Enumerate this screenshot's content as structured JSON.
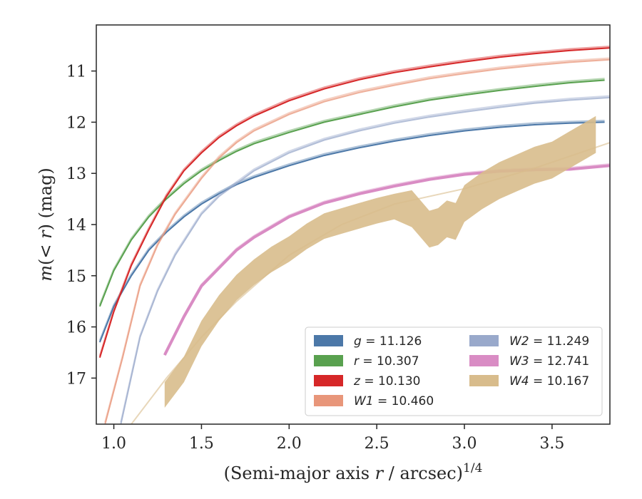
{
  "chart_data": {
    "type": "line",
    "xlabel": "(Semi-major axis r / arcsec)^{1/4}",
    "ylabel": "m(< r) (mag)",
    "xlim": [
      0.9,
      3.83
    ],
    "ylim": [
      17.9,
      10.1
    ],
    "y_inverted": true,
    "grid": false,
    "legend_position": "lower-right",
    "legend_columns": 2,
    "x_ticks": [
      "1.0",
      "1.5",
      "2.0",
      "2.5",
      "3.0",
      "3.5"
    ],
    "y_ticks": [
      "11",
      "12",
      "13",
      "14",
      "15",
      "16",
      "17"
    ],
    "series": [
      {
        "name": "g = 11.126",
        "band": "g",
        "value": "11.126",
        "color": "#4c78a8",
        "data": [
          [
            0.92,
            16.3
          ],
          [
            1.0,
            15.6
          ],
          [
            1.1,
            15.0
          ],
          [
            1.2,
            14.5
          ],
          [
            1.3,
            14.15
          ],
          [
            1.4,
            13.85
          ],
          [
            1.5,
            13.6
          ],
          [
            1.6,
            13.4
          ],
          [
            1.7,
            13.22
          ],
          [
            1.8,
            13.08
          ],
          [
            2.0,
            12.85
          ],
          [
            2.2,
            12.65
          ],
          [
            2.4,
            12.5
          ],
          [
            2.6,
            12.37
          ],
          [
            2.8,
            12.26
          ],
          [
            3.0,
            12.17
          ],
          [
            3.2,
            12.1
          ],
          [
            3.4,
            12.05
          ],
          [
            3.6,
            12.02
          ],
          [
            3.8,
            12.0
          ]
        ]
      },
      {
        "name": "r = 10.307",
        "band": "r",
        "value": "10.307",
        "color": "#59a14f",
        "data": [
          [
            0.92,
            15.6
          ],
          [
            1.0,
            14.9
          ],
          [
            1.1,
            14.3
          ],
          [
            1.2,
            13.85
          ],
          [
            1.3,
            13.5
          ],
          [
            1.4,
            13.2
          ],
          [
            1.5,
            12.95
          ],
          [
            1.6,
            12.75
          ],
          [
            1.7,
            12.57
          ],
          [
            1.8,
            12.42
          ],
          [
            2.0,
            12.2
          ],
          [
            2.2,
            12.0
          ],
          [
            2.4,
            11.85
          ],
          [
            2.6,
            11.7
          ],
          [
            2.8,
            11.57
          ],
          [
            3.0,
            11.47
          ],
          [
            3.2,
            11.38
          ],
          [
            3.4,
            11.3
          ],
          [
            3.6,
            11.23
          ],
          [
            3.8,
            11.18
          ]
        ]
      },
      {
        "name": "z = 10.130",
        "band": "z",
        "value": "10.130",
        "color": "#d62728",
        "data": [
          [
            0.92,
            16.6
          ],
          [
            1.0,
            15.7
          ],
          [
            1.1,
            14.8
          ],
          [
            1.2,
            14.1
          ],
          [
            1.3,
            13.45
          ],
          [
            1.4,
            12.95
          ],
          [
            1.5,
            12.6
          ],
          [
            1.6,
            12.3
          ],
          [
            1.7,
            12.07
          ],
          [
            1.8,
            11.88
          ],
          [
            2.0,
            11.58
          ],
          [
            2.2,
            11.35
          ],
          [
            2.4,
            11.17
          ],
          [
            2.6,
            11.03
          ],
          [
            2.8,
            10.92
          ],
          [
            3.0,
            10.82
          ],
          [
            3.2,
            10.73
          ],
          [
            3.4,
            10.66
          ],
          [
            3.6,
            10.6
          ],
          [
            3.83,
            10.55
          ]
        ]
      },
      {
        "name": "W1 = 10.460",
        "band": "W1",
        "value": "10.460",
        "color": "#e8967a",
        "data": [
          [
            0.95,
            17.9
          ],
          [
            1.05,
            16.6
          ],
          [
            1.15,
            15.2
          ],
          [
            1.25,
            14.4
          ],
          [
            1.35,
            13.8
          ],
          [
            1.5,
            13.1
          ],
          [
            1.6,
            12.7
          ],
          [
            1.7,
            12.4
          ],
          [
            1.8,
            12.17
          ],
          [
            2.0,
            11.85
          ],
          [
            2.2,
            11.6
          ],
          [
            2.4,
            11.42
          ],
          [
            2.6,
            11.28
          ],
          [
            2.8,
            11.15
          ],
          [
            3.0,
            11.05
          ],
          [
            3.2,
            10.96
          ],
          [
            3.4,
            10.89
          ],
          [
            3.6,
            10.83
          ],
          [
            3.83,
            10.78
          ]
        ]
      },
      {
        "name": "W2 = 11.249",
        "band": "W2",
        "value": "11.249",
        "color": "#99a9cb",
        "data": [
          [
            1.04,
            17.9
          ],
          [
            1.15,
            16.2
          ],
          [
            1.25,
            15.3
          ],
          [
            1.35,
            14.6
          ],
          [
            1.5,
            13.8
          ],
          [
            1.6,
            13.45
          ],
          [
            1.7,
            13.2
          ],
          [
            1.8,
            12.95
          ],
          [
            2.0,
            12.6
          ],
          [
            2.2,
            12.35
          ],
          [
            2.4,
            12.17
          ],
          [
            2.6,
            12.02
          ],
          [
            2.8,
            11.9
          ],
          [
            3.0,
            11.8
          ],
          [
            3.2,
            11.71
          ],
          [
            3.4,
            11.63
          ],
          [
            3.6,
            11.57
          ],
          [
            3.83,
            11.52
          ]
        ]
      },
      {
        "name": "W3 = 12.741",
        "band": "W3",
        "value": "12.741",
        "color": "#d98cc4",
        "data": [
          [
            1.29,
            16.55
          ],
          [
            1.4,
            15.8
          ],
          [
            1.5,
            15.2
          ],
          [
            1.6,
            14.85
          ],
          [
            1.7,
            14.5
          ],
          [
            1.8,
            14.25
          ],
          [
            1.9,
            14.05
          ],
          [
            2.0,
            13.85
          ],
          [
            2.2,
            13.58
          ],
          [
            2.4,
            13.4
          ],
          [
            2.6,
            13.25
          ],
          [
            2.8,
            13.12
          ],
          [
            3.0,
            13.02
          ],
          [
            3.2,
            12.96
          ],
          [
            3.4,
            12.93
          ],
          [
            3.6,
            12.92
          ],
          [
            3.83,
            12.85
          ]
        ]
      },
      {
        "name": "W4 = 10.167",
        "band": "W4",
        "value": "10.167",
        "color": "#d8bc8c",
        "data": [
          [
            1.29,
            17.3
          ],
          [
            1.4,
            16.8
          ],
          [
            1.5,
            16.1
          ],
          [
            1.6,
            15.6
          ],
          [
            1.7,
            15.2
          ],
          [
            1.8,
            14.9
          ],
          [
            1.9,
            14.65
          ],
          [
            2.0,
            14.45
          ],
          [
            2.1,
            14.2
          ],
          [
            2.2,
            14.0
          ],
          [
            2.3,
            13.9
          ],
          [
            2.4,
            13.8
          ],
          [
            2.5,
            13.7
          ],
          [
            2.6,
            13.62
          ],
          [
            2.7,
            13.65
          ],
          [
            2.75,
            13.85
          ],
          [
            2.8,
            14.05
          ],
          [
            2.85,
            14.0
          ],
          [
            2.9,
            13.85
          ],
          [
            2.95,
            13.9
          ],
          [
            3.0,
            13.55
          ],
          [
            3.1,
            13.3
          ],
          [
            3.2,
            13.1
          ],
          [
            3.3,
            12.95
          ],
          [
            3.4,
            12.8
          ],
          [
            3.5,
            12.7
          ],
          [
            3.6,
            12.5
          ],
          [
            3.7,
            12.3
          ],
          [
            3.75,
            12.2
          ]
        ]
      }
    ]
  }
}
